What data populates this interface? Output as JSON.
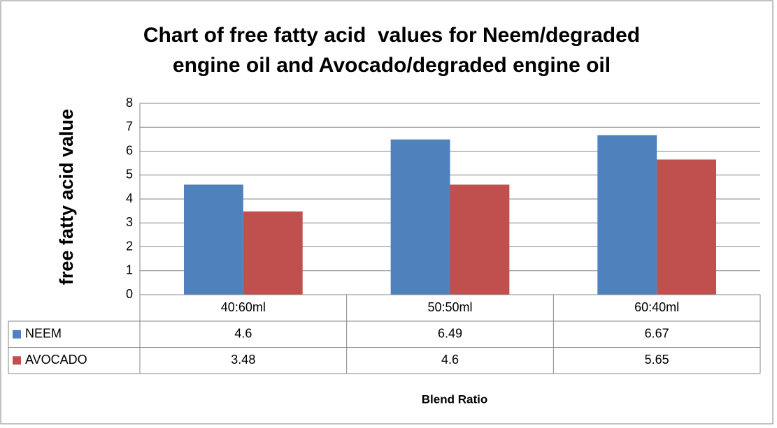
{
  "chart_data": {
    "type": "bar",
    "title": [
      "Chart of free fatty acid  values for Neem/degraded",
      "engine oil and Avocado/degraded engine oil"
    ],
    "y_label": "free fatty acid value",
    "x_label": "Blend Ratio",
    "categories": [
      "40:60ml",
      "50:50ml",
      "60:40ml"
    ],
    "series": [
      {
        "name": "NEEM",
        "color": "#4f81bd",
        "values": [
          4.6,
          6.49,
          6.67
        ]
      },
      {
        "name": "AVOCADO",
        "color": "#c0504d",
        "values": [
          3.48,
          4.6,
          5.65
        ]
      }
    ],
    "ylim": [
      0,
      8
    ],
    "yticks": [
      0,
      1,
      2,
      3,
      4,
      5,
      6,
      7,
      8
    ],
    "grid": true,
    "data_table": true
  }
}
